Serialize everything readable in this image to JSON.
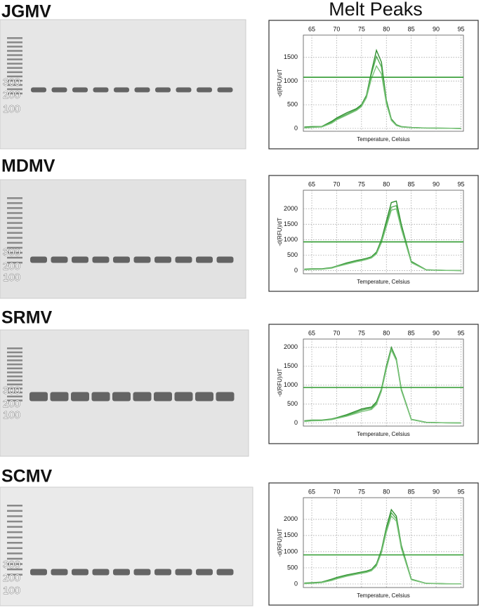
{
  "heading": "Melt Peaks",
  "gels": [
    {
      "title": "JGMV",
      "ladder_labels": [
        "300",
        "200",
        "100"
      ]
    },
    {
      "title": "MDMV",
      "ladder_labels": [
        "300",
        "200",
        "100"
      ]
    },
    {
      "title": "SRMV",
      "ladder_labels": [
        "300",
        "200",
        "100"
      ]
    },
    {
      "title": "SCMV",
      "ladder_labels": [
        "300",
        "200",
        "100"
      ]
    }
  ],
  "chart_data": [
    {
      "type": "line",
      "xlabel": "Temperature, Celsius",
      "ylabel": "-d(RFU)/dT",
      "xlim": [
        63.3,
        95.5
      ],
      "xticks": [
        65,
        70,
        75,
        80,
        85,
        90,
        95
      ],
      "ylim": [
        -60,
        1970
      ],
      "yticks": [
        0,
        500,
        1000,
        1500
      ],
      "grid": true,
      "threshold": 1080,
      "threshold_color": "#2e9a2e",
      "x": [
        63.5,
        65,
        67,
        69,
        70,
        72,
        74,
        75,
        76,
        77,
        78,
        79,
        80,
        81,
        82,
        83,
        85,
        88,
        92,
        95
      ],
      "series": [
        {
          "color": "#2f8f2f",
          "values": [
            30,
            40,
            40,
            150,
            220,
            330,
            420,
            500,
            700,
            1200,
            1650,
            1400,
            600,
            200,
            80,
            40,
            20,
            10,
            5,
            0
          ]
        },
        {
          "color": "#52ad52",
          "values": [
            20,
            30,
            35,
            130,
            200,
            300,
            400,
            480,
            680,
            1150,
            1520,
            1300,
            560,
            180,
            70,
            35,
            18,
            8,
            4,
            0
          ]
        },
        {
          "color": "#7cc47c",
          "values": [
            10,
            20,
            30,
            110,
            180,
            280,
            380,
            460,
            650,
            1050,
            1320,
            1150,
            520,
            170,
            60,
            30,
            15,
            6,
            3,
            0
          ]
        }
      ]
    },
    {
      "type": "line",
      "xlabel": "Temperature, Celsius",
      "ylabel": "-d(RFU)/dT",
      "xlim": [
        63.3,
        95.5
      ],
      "xticks": [
        65,
        70,
        75,
        80,
        85,
        90,
        95
      ],
      "ylim": [
        -100,
        2600
      ],
      "yticks": [
        0,
        500,
        1000,
        1500,
        2000
      ],
      "grid": true,
      "threshold": 930,
      "threshold_color": "#2e9a2e",
      "x": [
        63.5,
        65,
        67,
        69,
        70,
        72,
        74,
        75,
        76,
        77,
        78,
        79,
        80,
        81,
        82,
        83,
        85,
        88,
        92,
        95
      ],
      "series": [
        {
          "color": "#2f8f2f",
          "values": [
            50,
            60,
            60,
            100,
            150,
            250,
            330,
            360,
            400,
            450,
            600,
            1000,
            1600,
            2200,
            2250,
            1500,
            300,
            30,
            10,
            5
          ]
        },
        {
          "color": "#52ad52",
          "values": [
            40,
            50,
            50,
            90,
            140,
            230,
            310,
            340,
            380,
            430,
            570,
            950,
            1500,
            2050,
            2100,
            1400,
            280,
            25,
            8,
            4
          ]
        },
        {
          "color": "#7cc47c",
          "values": [
            30,
            40,
            45,
            80,
            130,
            210,
            290,
            320,
            360,
            410,
            540,
            900,
            1420,
            1950,
            2000,
            1350,
            260,
            20,
            6,
            3
          ]
        }
      ]
    },
    {
      "type": "line",
      "xlabel": "Temperature, Celsius",
      "ylabel": "-d(RFU)/dT",
      "xlim": [
        63.3,
        95.5
      ],
      "xticks": [
        65,
        70,
        75,
        80,
        85,
        90,
        95
      ],
      "ylim": [
        -80,
        2220
      ],
      "yticks": [
        0,
        500,
        1000,
        1500,
        2000
      ],
      "grid": true,
      "threshold": 940,
      "threshold_color": "#2e9a2e",
      "x": [
        63.5,
        65,
        67,
        69,
        70,
        72,
        74,
        75,
        76,
        77,
        78,
        79,
        80,
        81,
        82,
        83,
        85,
        88,
        92,
        95
      ],
      "series": [
        {
          "color": "#2f8f2f",
          "values": [
            60,
            80,
            80,
            110,
            140,
            220,
            320,
            370,
            400,
            420,
            560,
            900,
            1500,
            2000,
            1700,
            900,
            100,
            20,
            8,
            4
          ]
        },
        {
          "color": "#52ad52",
          "values": [
            50,
            70,
            70,
            100,
            130,
            200,
            290,
            340,
            370,
            390,
            520,
            870,
            1450,
            1960,
            1680,
            880,
            95,
            18,
            6,
            3
          ]
        },
        {
          "color": "#7cc47c",
          "values": [
            40,
            60,
            65,
            90,
            120,
            180,
            260,
            300,
            330,
            360,
            490,
            840,
            1420,
            1930,
            1650,
            860,
            90,
            15,
            5,
            2
          ]
        }
      ]
    },
    {
      "type": "line",
      "xlabel": "Temperature, Celsius",
      "ylabel": "-d(RFU)/dT",
      "xlim": [
        63.3,
        95.5
      ],
      "xticks": [
        65,
        70,
        75,
        80,
        85,
        90,
        95
      ],
      "ylim": [
        -110,
        2670
      ],
      "yticks": [
        0,
        500,
        1000,
        1500,
        2000
      ],
      "grid": true,
      "threshold": 900,
      "threshold_color": "#2e9a2e",
      "x": [
        63.5,
        65,
        67,
        69,
        70,
        72,
        74,
        75,
        76,
        77,
        78,
        79,
        80,
        81,
        82,
        83,
        85,
        88,
        92,
        95
      ],
      "series": [
        {
          "color": "#2f8f2f",
          "values": [
            30,
            40,
            60,
            150,
            200,
            280,
            340,
            370,
            400,
            450,
            620,
            1050,
            1750,
            2300,
            2100,
            1200,
            150,
            20,
            8,
            4
          ]
        },
        {
          "color": "#52ad52",
          "values": [
            20,
            30,
            50,
            130,
            180,
            260,
            320,
            350,
            380,
            430,
            590,
            1000,
            1680,
            2200,
            2020,
            1150,
            140,
            18,
            6,
            3
          ]
        },
        {
          "color": "#7cc47c",
          "values": [
            10,
            20,
            40,
            110,
            160,
            240,
            300,
            330,
            360,
            410,
            560,
            960,
            1600,
            2100,
            1950,
            1100,
            130,
            15,
            5,
            2
          ]
        }
      ]
    }
  ]
}
